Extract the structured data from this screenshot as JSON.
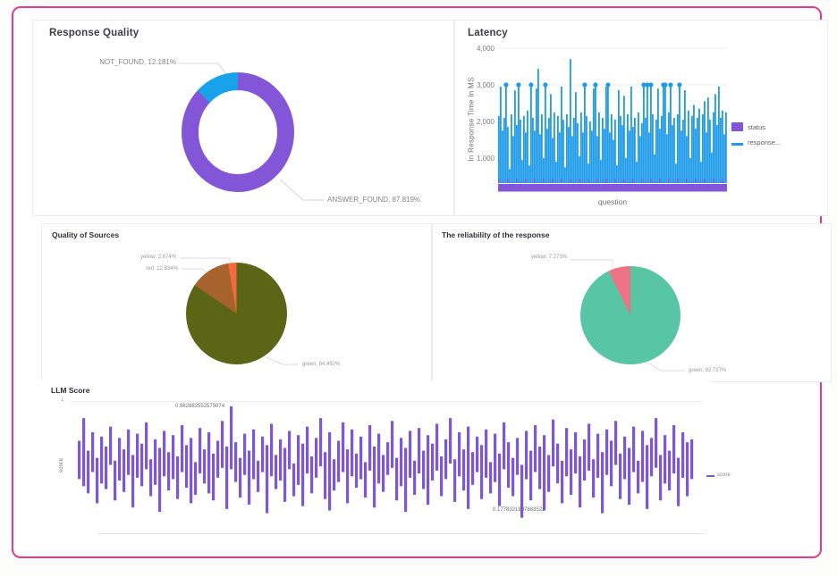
{
  "accent_border_color": "#e9398e",
  "chart_data": [
    {
      "id": "response_quality",
      "type": "pie",
      "variant": "donut",
      "title": "Response Quality",
      "slices": [
        {
          "label": "ANSWER_FOUND",
          "value": 87.819,
          "display": "ANSWER_FOUND, 87.819%",
          "color": "#8355d7"
        },
        {
          "label": "NOT_FOUND",
          "value": 12.181,
          "display": "NOT_FOUND, 12.181%",
          "color": "#18a2e9"
        }
      ]
    },
    {
      "id": "latency",
      "type": "bar",
      "title": "Latency",
      "xlabel": "question",
      "ylabel": "In Response Time In MS",
      "ylim": [
        0,
        4000
      ],
      "grid": true,
      "yticks": [
        {
          "value": 4000,
          "label": "4,000"
        },
        {
          "value": 3000,
          "label": "3,000"
        },
        {
          "value": 2000,
          "label": "2,000"
        },
        {
          "value": 1000,
          "label": "1,000"
        }
      ],
      "legend_position": "right",
      "legend": [
        {
          "label": "status",
          "color": "#8355d7",
          "shape": "square"
        },
        {
          "label": "response...",
          "color": "#1e9be9",
          "shape": "line"
        }
      ],
      "series_color": "#1e9be9",
      "status_color": "#8355d7",
      "marker_level": 3000,
      "values": [
        2150,
        2950,
        1750,
        2100,
        3000,
        1850,
        700,
        2200,
        1600,
        2850,
        1900,
        3000,
        2050,
        950,
        2150,
        1700,
        2300,
        800,
        3000,
        2100,
        1750,
        2900,
        3437,
        1650,
        2200,
        1000,
        3000,
        1800,
        2100,
        2750,
        1550,
        2250,
        900,
        2150,
        1700,
        2950,
        2050,
        750,
        2200,
        1850,
        3704,
        1600,
        2100,
        2800,
        1950,
        1050,
        2250,
        1700,
        3000,
        2150,
        850,
        2000,
        1750,
        2900,
        3000,
        1600,
        2250,
        950,
        2100,
        1800,
        2950,
        3000,
        1700,
        2200,
        1500,
        2050,
        800,
        2850,
        2150,
        1900,
        2700,
        1000,
        2200,
        1750,
        2950,
        1850,
        2100,
        900,
        2250,
        1600,
        1950,
        3000,
        2100,
        3000,
        1700,
        3000,
        2200,
        1100,
        2050,
        2900,
        1800,
        2150,
        3000,
        3000,
        1650,
        2250,
        3000,
        1900,
        2100,
        850,
        2200,
        3000,
        1750,
        2050,
        2850,
        1600,
        2300,
        1000,
        2150,
        2450,
        1800,
        2100,
        2350,
        900,
        2200,
        2550,
        1700,
        2650,
        2050,
        1150,
        2250,
        2750,
        1900,
        2950,
        2100,
        2300,
        1650,
        2250
      ],
      "markers": [
        4,
        11,
        18,
        26,
        48,
        54,
        61,
        81,
        83,
        85,
        92,
        93,
        96,
        101
      ]
    },
    {
      "id": "quality_of_sources",
      "type": "pie",
      "title": "Quality of Sources",
      "slices": [
        {
          "label": "green",
          "value": 84.492,
          "display": "green, 84.492%",
          "color": "#5a6615"
        },
        {
          "label": "red",
          "value": 12.834,
          "display": "red, 12.834%",
          "color": "#a8622b"
        },
        {
          "label": "yellow",
          "value": 2.674,
          "display": "yellow, 2.674%",
          "color": "#f26a3d"
        }
      ]
    },
    {
      "id": "reliability_of_response",
      "type": "pie",
      "title": "The reliability of the response",
      "slices": [
        {
          "label": "green",
          "value": 92.727,
          "display": "green, 92.727%",
          "color": "#58c6a4"
        },
        {
          "label": "yellow",
          "value": 7.273,
          "display": "yellow, 7.273%",
          "color": "#ee7186"
        }
      ]
    },
    {
      "id": "llm_score",
      "type": "range-bar",
      "title": "LLM Score",
      "ylabel": "score",
      "ytick_top": "1",
      "color": "#7e57d9",
      "legend": [
        {
          "label": "score",
          "color": "#7e57d9",
          "shape": "line"
        }
      ],
      "annotations": [
        {
          "text": "0.962882552575074",
          "position": "max"
        },
        {
          "text": "0.1778321897883523",
          "position": "min"
        }
      ],
      "bars": [
        [
          0.72,
          0.45
        ],
        [
          0.88,
          0.4
        ],
        [
          0.65,
          0.35
        ],
        [
          0.78,
          0.5
        ],
        [
          0.6,
          0.28
        ],
        [
          0.75,
          0.42
        ],
        [
          0.68,
          0.38
        ],
        [
          0.82,
          0.55
        ],
        [
          0.58,
          0.3
        ],
        [
          0.74,
          0.44
        ],
        [
          0.66,
          0.36
        ],
        [
          0.8,
          0.48
        ],
        [
          0.62,
          0.25
        ],
        [
          0.77,
          0.46
        ],
        [
          0.7,
          0.4
        ],
        [
          0.85,
          0.52
        ],
        [
          0.59,
          0.33
        ],
        [
          0.73,
          0.41
        ],
        [
          0.67,
          0.22
        ],
        [
          0.79,
          0.47
        ],
        [
          0.64,
          0.37
        ],
        [
          0.76,
          0.45
        ],
        [
          0.61,
          0.31
        ],
        [
          0.83,
          0.5
        ],
        [
          0.69,
          0.39
        ],
        [
          0.74,
          0.28
        ],
        [
          0.57,
          0.34
        ],
        [
          0.81,
          0.49
        ],
        [
          0.66,
          0.42
        ],
        [
          0.78,
          0.35
        ],
        [
          0.63,
          0.3
        ],
        [
          0.72,
          0.46
        ],
        [
          0.86,
          0.53
        ],
        [
          0.68,
          0.24
        ],
        [
          0.9629,
          0.52
        ],
        [
          0.71,
          0.43
        ],
        [
          0.6,
          0.32
        ],
        [
          0.77,
          0.48
        ],
        [
          0.65,
          0.27
        ],
        [
          0.8,
          0.45
        ],
        [
          0.58,
          0.36
        ],
        [
          0.75,
          0.5
        ],
        [
          0.69,
          0.21
        ],
        [
          0.84,
          0.47
        ],
        [
          0.62,
          0.38
        ],
        [
          0.73,
          0.44
        ],
        [
          0.67,
          0.29
        ],
        [
          0.79,
          0.52
        ],
        [
          0.56,
          0.33
        ],
        [
          0.76,
          0.41
        ],
        [
          0.7,
          0.26
        ],
        [
          0.82,
          0.49
        ],
        [
          0.61,
          0.35
        ],
        [
          0.74,
          0.46
        ],
        [
          0.88,
          0.54
        ],
        [
          0.64,
          0.31
        ],
        [
          0.78,
          0.23
        ],
        [
          0.59,
          0.37
        ],
        [
          0.72,
          0.43
        ],
        [
          0.85,
          0.5
        ],
        [
          0.66,
          0.28
        ],
        [
          0.8,
          0.47
        ],
        [
          0.63,
          0.39
        ],
        [
          0.75,
          0.45
        ],
        [
          0.57,
          0.32
        ],
        [
          0.83,
          0.51
        ],
        [
          0.68,
          0.25
        ],
        [
          0.77,
          0.42
        ],
        [
          0.62,
          0.36
        ],
        [
          0.71,
          0.48
        ],
        [
          0.86,
          0.53
        ],
        [
          0.6,
          0.3
        ],
        [
          0.74,
          0.4
        ],
        [
          0.67,
          0.22
        ],
        [
          0.79,
          0.46
        ],
        [
          0.58,
          0.34
        ],
        [
          0.81,
          0.49
        ],
        [
          0.65,
          0.38
        ],
        [
          0.76,
          0.27
        ],
        [
          0.7,
          0.44
        ],
        [
          0.84,
          0.51
        ],
        [
          0.61,
          0.33
        ],
        [
          0.73,
          0.45
        ],
        [
          0.88,
          0.56
        ],
        [
          0.59,
          0.29
        ],
        [
          0.78,
          0.47
        ],
        [
          0.66,
          0.37
        ],
        [
          0.82,
          0.24
        ],
        [
          0.64,
          0.41
        ],
        [
          0.75,
          0.5
        ],
        [
          0.69,
          0.31
        ],
        [
          0.8,
          0.46
        ],
        [
          0.57,
          0.35
        ],
        [
          0.77,
          0.43
        ],
        [
          0.63,
          0.26
        ],
        [
          0.85,
          0.52
        ],
        [
          0.71,
          0.39
        ],
        [
          0.6,
          0.33
        ],
        [
          0.74,
          0.48
        ],
        [
          0.55,
          0.1778
        ],
        [
          0.79,
          0.45
        ],
        [
          0.65,
          0.3
        ],
        [
          0.83,
          0.5
        ],
        [
          0.68,
          0.38
        ],
        [
          0.76,
          0.23
        ],
        [
          0.62,
          0.36
        ],
        [
          0.87,
          0.54
        ],
        [
          0.7,
          0.42
        ],
        [
          0.58,
          0.28
        ],
        [
          0.81,
          0.47
        ],
        [
          0.66,
          0.34
        ],
        [
          0.78,
          0.49
        ],
        [
          0.61,
          0.25
        ],
        [
          0.73,
          0.44
        ],
        [
          0.84,
          0.51
        ],
        [
          0.59,
          0.32
        ],
        [
          0.77,
          0.46
        ],
        [
          0.64,
          0.21
        ],
        [
          0.8,
          0.48
        ],
        [
          0.72,
          0.4
        ],
        [
          0.86,
          0.55
        ],
        [
          0.63,
          0.31
        ],
        [
          0.75,
          0.45
        ],
        [
          0.67,
          0.27
        ],
        [
          0.82,
          0.5
        ],
        [
          0.58,
          0.35
        ],
        [
          0.79,
          0.43
        ],
        [
          0.69,
          0.24
        ],
        [
          0.74,
          0.47
        ],
        [
          0.88,
          0.53
        ],
        [
          0.62,
          0.3
        ],
        [
          0.76,
          0.42
        ],
        [
          0.65,
          0.37
        ],
        [
          0.83,
          0.49
        ],
        [
          0.6,
          0.26
        ],
        [
          0.78,
          0.46
        ],
        [
          0.71,
          0.33
        ],
        [
          0.73,
          0.45
        ]
      ]
    }
  ]
}
